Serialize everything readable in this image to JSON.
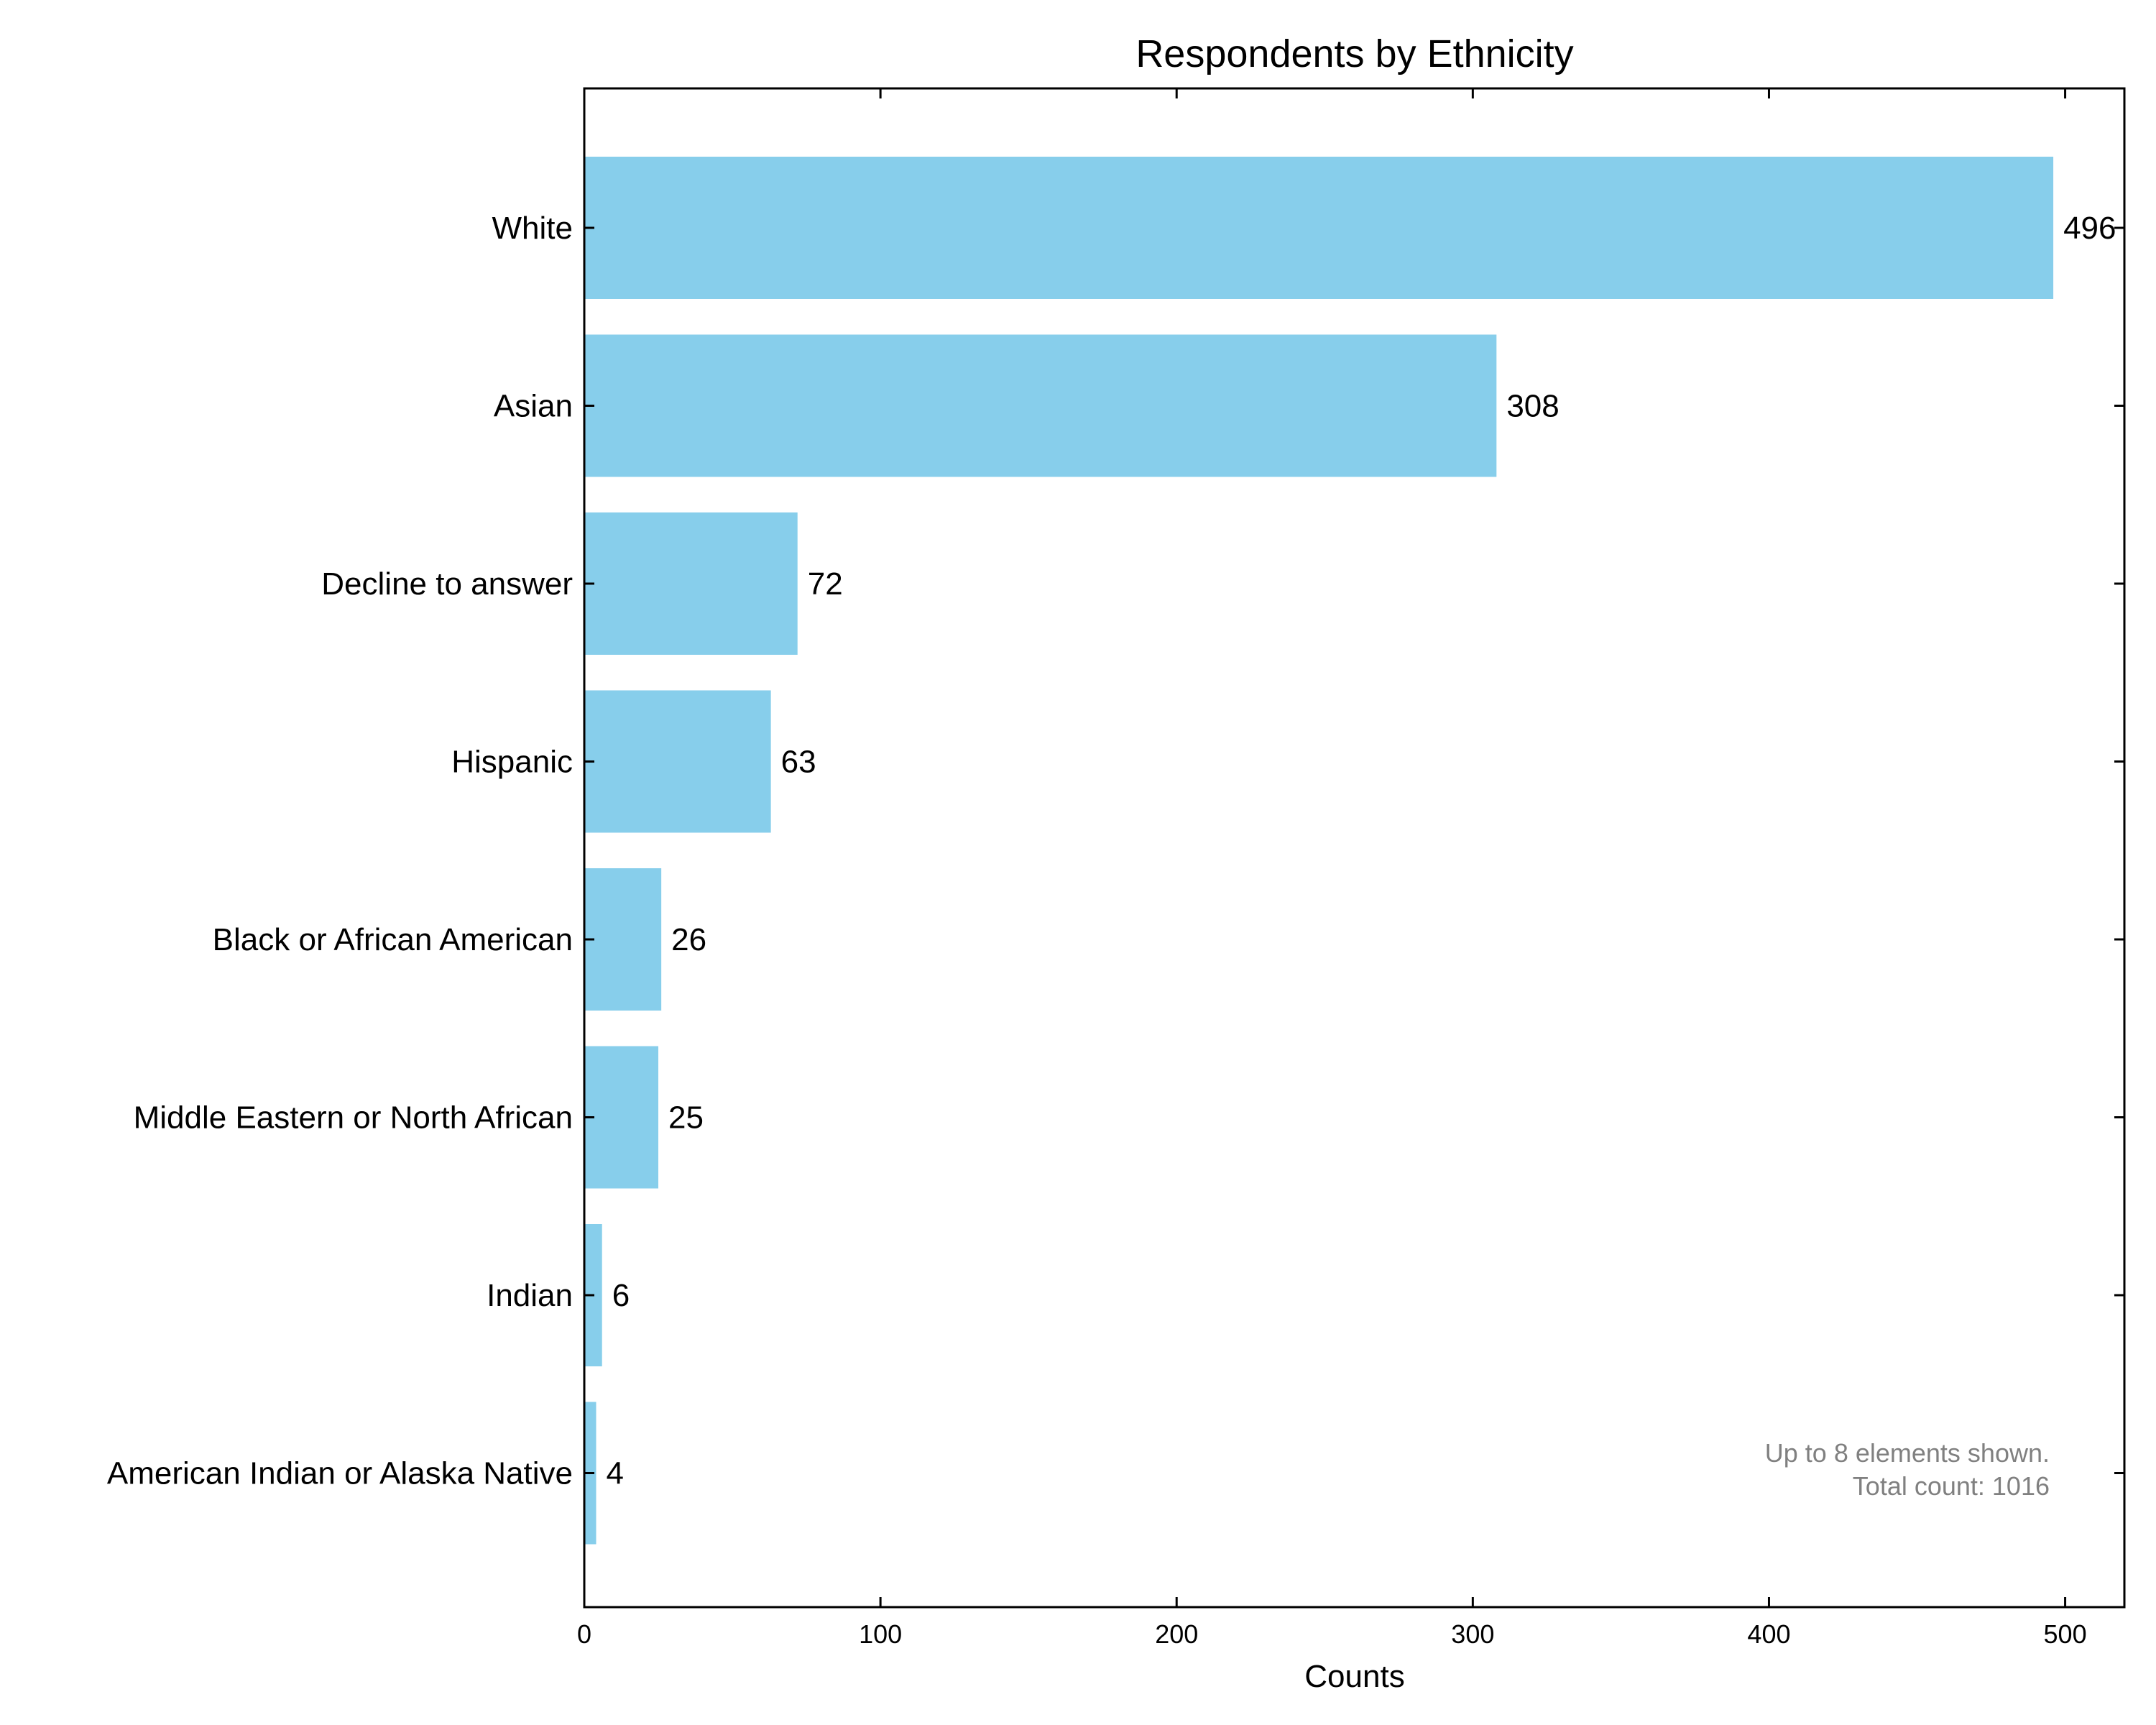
{
  "chart_data": {
    "type": "bar",
    "orientation": "horizontal",
    "title": "Respondents by Ethnicity",
    "xlabel": "Counts",
    "ylabel": "",
    "xlim": [
      0,
      520
    ],
    "xticks": [
      0,
      100,
      200,
      300,
      400,
      500
    ],
    "categories": [
      "White",
      "Asian",
      "Decline to answer",
      "Hispanic",
      "Black or African American",
      "Middle Eastern or North African",
      "Indian",
      "American Indian or Alaska Native"
    ],
    "values": [
      496,
      308,
      72,
      63,
      26,
      25,
      6,
      4
    ],
    "bar_color": "#87CEEB",
    "grid": false,
    "annotation": {
      "line1": "Up to 8 elements shown.",
      "line2": "Total count: 1016"
    }
  }
}
